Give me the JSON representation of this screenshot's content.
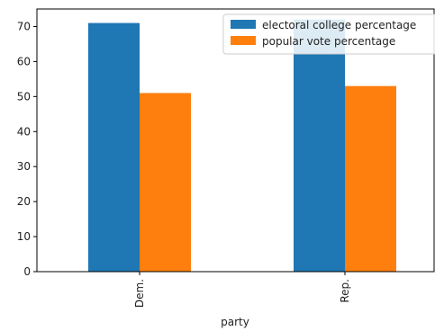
{
  "chart_data": {
    "type": "bar",
    "categories": [
      "Dem.",
      "Rep."
    ],
    "series": [
      {
        "name": "electoral college percentage",
        "values": [
          71,
          72
        ],
        "color": "#1f77b4"
      },
      {
        "name": "popular vote percentage",
        "values": [
          51,
          53
        ],
        "color": "#ff7f0e"
      }
    ],
    "xlabel": "party",
    "ylabel": "",
    "ylim": [
      0,
      75
    ],
    "yticks": [
      0,
      10,
      20,
      30,
      40,
      50,
      60,
      70
    ],
    "grid": false,
    "legend_position": "top-right"
  }
}
